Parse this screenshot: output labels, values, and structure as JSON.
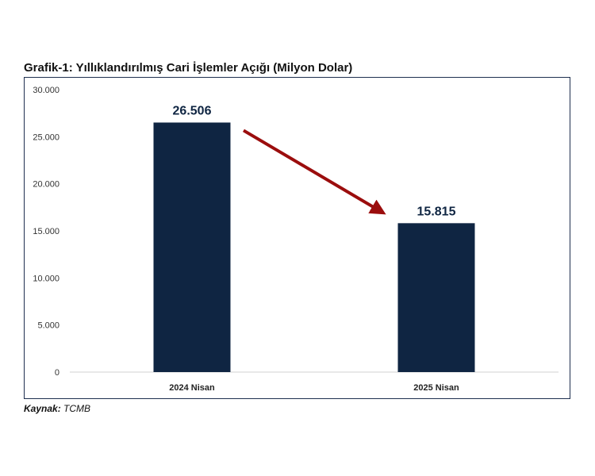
{
  "chart_data": {
    "type": "bar",
    "title": "Grafik-1: Yıllıklandırılmış Cari İşlemler Açığı (Milyon Dolar)",
    "categories": [
      "2024 Nisan",
      "2025 Nisan"
    ],
    "values": [
      26506,
      15815
    ],
    "data_labels": [
      "26.506",
      "15.815"
    ],
    "ylim": [
      0,
      30000
    ],
    "yticks": [
      0,
      5000,
      10000,
      15000,
      20000,
      25000,
      30000
    ],
    "ytick_labels": [
      "0",
      "5.000",
      "10.000",
      "15.000",
      "20.000",
      "25.000",
      "30.000"
    ],
    "grid": false,
    "legend": "none",
    "annotation": "downward arrow from first bar to second bar",
    "colors": {
      "bar": "#0f2542",
      "arrow": "#9b0d0d",
      "axis": "#d0d0d0",
      "frame": "#1f2f4f"
    }
  },
  "source": {
    "label": "Kaynak:",
    "value": "TCMB"
  }
}
